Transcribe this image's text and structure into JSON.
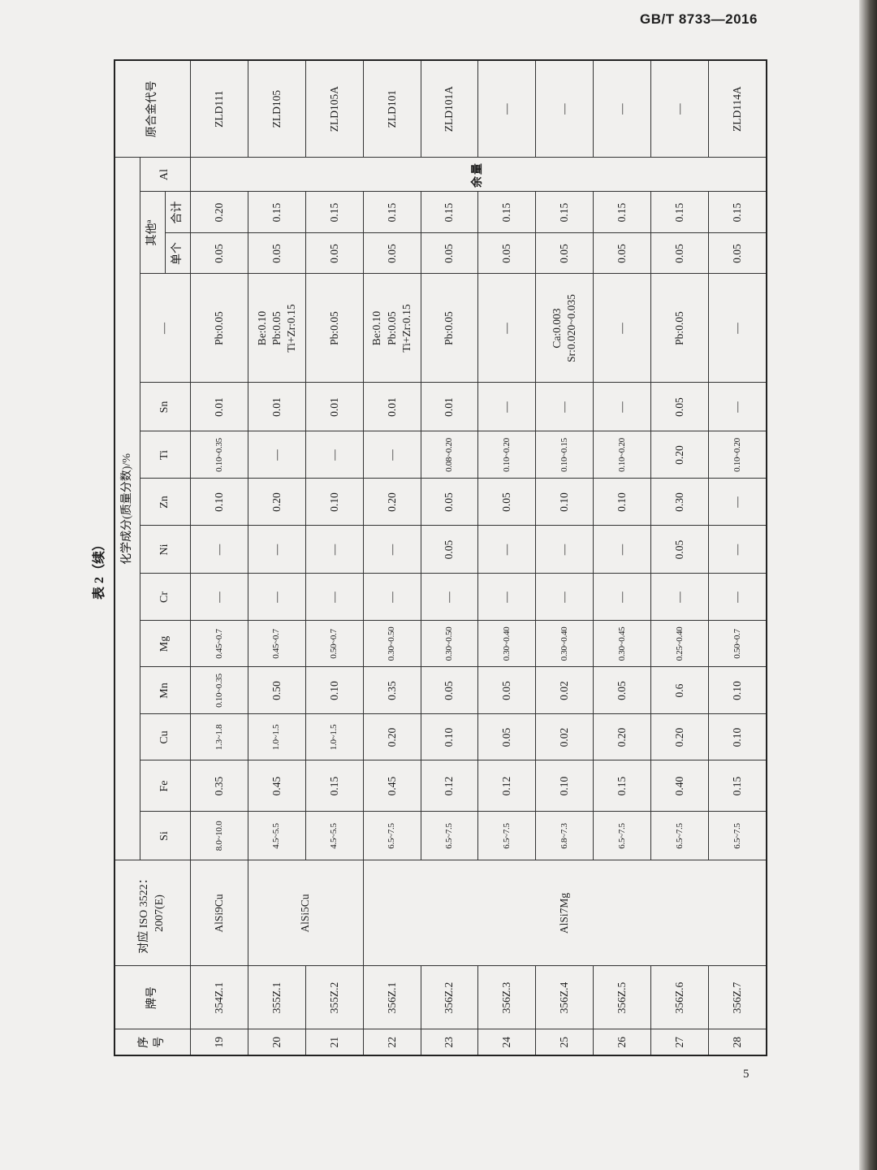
{
  "header": {
    "standard": "GB/T 8733—2016"
  },
  "page_number": "5",
  "table": {
    "caption": "表 2（续）",
    "columns": {
      "seq": "序号",
      "grade": "牌号",
      "iso": "对应 ISO 3522：2007(E)",
      "composition_group": "化学成分(质量分数)/%",
      "elements": [
        "Si",
        "Fe",
        "Cu",
        "Mn",
        "Mg",
        "Cr",
        "Ni",
        "Zn",
        "Ti",
        "Sn"
      ],
      "special": "—",
      "others": "其他ª",
      "others_single": "单个",
      "others_total": "合计",
      "al": "Al",
      "original_code": "原合金代号"
    },
    "al_value": "余量",
    "iso_groups": [
      {
        "label": "AlSi9Cu",
        "rows": 1
      },
      {
        "label": "AlSi5Cu",
        "rows": 2
      },
      {
        "label": "AlSi7Mg",
        "rows": 7
      }
    ],
    "rows": [
      {
        "seq": "19",
        "grade": "354Z.1",
        "el": [
          "8.0~10.0",
          "0.35",
          "1.3~1.8",
          "0.10~0.35",
          "0.45~0.7",
          "—",
          "—",
          "0.10",
          "0.10~0.35",
          "0.01"
        ],
        "special": [
          "Pb:0.05"
        ],
        "single": "0.05",
        "total": "0.20",
        "code": "ZLD111"
      },
      {
        "seq": "20",
        "grade": "355Z.1",
        "el": [
          "4.5~5.5",
          "0.45",
          "1.0~1.5",
          "0.50",
          "0.45~0.7",
          "—",
          "—",
          "0.20",
          "—",
          "0.01"
        ],
        "special": [
          "Be:0.10",
          "Pb:0.05",
          "Ti+Zr:0.15"
        ],
        "single": "0.05",
        "total": "0.15",
        "code": "ZLD105"
      },
      {
        "seq": "21",
        "grade": "355Z.2",
        "el": [
          "4.5~5.5",
          "0.15",
          "1.0~1.5",
          "0.10",
          "0.50~0.7",
          "—",
          "—",
          "0.10",
          "—",
          "0.01"
        ],
        "special": [
          "Pb:0.05"
        ],
        "single": "0.05",
        "total": "0.15",
        "code": "ZLD105A"
      },
      {
        "seq": "22",
        "grade": "356Z.1",
        "el": [
          "6.5~7.5",
          "0.45",
          "0.20",
          "0.35",
          "0.30~0.50",
          "—",
          "—",
          "0.20",
          "—",
          "0.01"
        ],
        "special": [
          "Be:0.10",
          "Pb:0.05",
          "Ti+Zr:0.15"
        ],
        "single": "0.05",
        "total": "0.15",
        "code": "ZLD101"
      },
      {
        "seq": "23",
        "grade": "356Z.2",
        "el": [
          "6.5~7.5",
          "0.12",
          "0.10",
          "0.05",
          "0.30~0.50",
          "—",
          "0.05",
          "0.05",
          "0.08~0.20",
          "0.01"
        ],
        "special": [
          "Pb:0.05"
        ],
        "single": "0.05",
        "total": "0.15",
        "code": "ZLD101A"
      },
      {
        "seq": "24",
        "grade": "356Z.3",
        "el": [
          "6.5~7.5",
          "0.12",
          "0.05",
          "0.05",
          "0.30~0.40",
          "—",
          "—",
          "0.05",
          "0.10~0.20",
          "—"
        ],
        "special": [
          "—"
        ],
        "single": "0.05",
        "total": "0.15",
        "code": "—"
      },
      {
        "seq": "25",
        "grade": "356Z.4",
        "el": [
          "6.8~7.3",
          "0.10",
          "0.02",
          "0.02",
          "0.30~0.40",
          "—",
          "—",
          "0.10",
          "0.10~0.15",
          "—"
        ],
        "special": [
          "Ca:0.003",
          "Sr:0.020~0.035"
        ],
        "single": "0.05",
        "total": "0.15",
        "code": "—"
      },
      {
        "seq": "26",
        "grade": "356Z.5",
        "el": [
          "6.5~7.5",
          "0.15",
          "0.20",
          "0.05",
          "0.30~0.45",
          "—",
          "—",
          "0.10",
          "0.10~0.20",
          "—"
        ],
        "special": [
          "—"
        ],
        "single": "0.05",
        "total": "0.15",
        "code": "—"
      },
      {
        "seq": "27",
        "grade": "356Z.6",
        "el": [
          "6.5~7.5",
          "0.40",
          "0.20",
          "0.6",
          "0.25~0.40",
          "—",
          "0.05",
          "0.30",
          "0.20",
          "0.05"
        ],
        "special": [
          "Pb:0.05"
        ],
        "single": "0.05",
        "total": "0.15",
        "code": "—"
      },
      {
        "seq": "28",
        "grade": "356Z.7",
        "el": [
          "6.5~7.5",
          "0.15",
          "0.10",
          "0.10",
          "0.50~0.7",
          "—",
          "—",
          "—",
          "0.10~0.20",
          "—"
        ],
        "special": [
          "—"
        ],
        "single": "0.05",
        "total": "0.15",
        "code": "ZLD114A"
      }
    ]
  }
}
